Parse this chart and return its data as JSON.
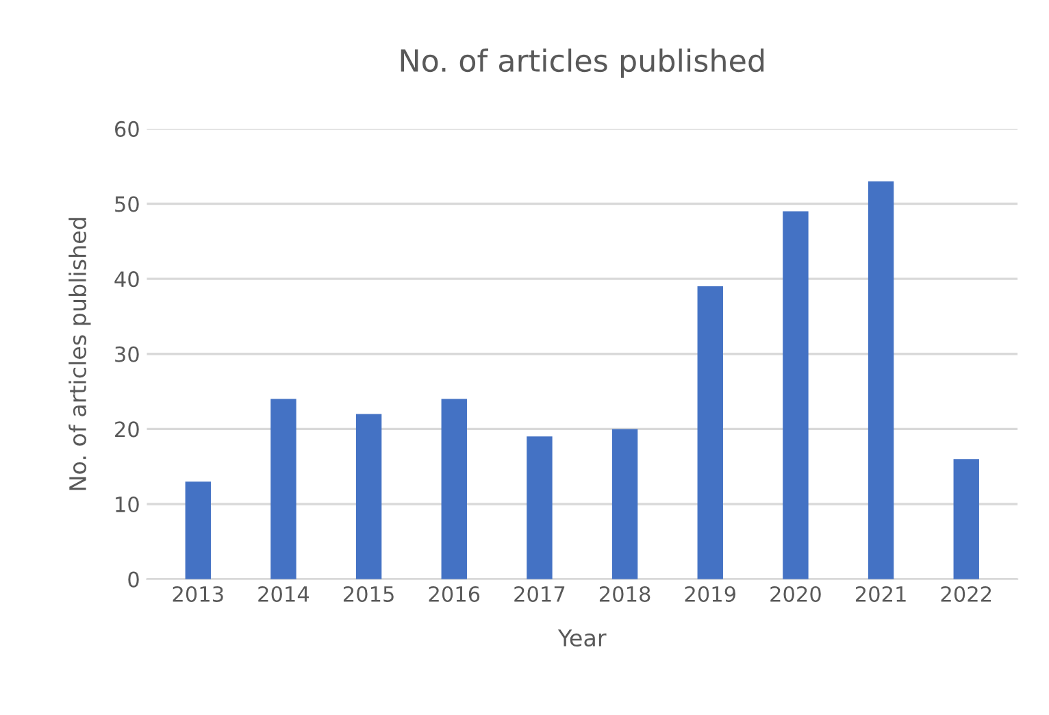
{
  "chart_data": {
    "type": "bar",
    "title": "No. of articles published",
    "xlabel": "Year",
    "ylabel": "No. of articles published",
    "categories": [
      "2013",
      "2014",
      "2015",
      "2016",
      "2017",
      "2018",
      "2019",
      "2020",
      "2021",
      "2022"
    ],
    "values": [
      13,
      24,
      22,
      24,
      19,
      20,
      39,
      49,
      53,
      16
    ],
    "color": "#4472c4",
    "ylim": [
      0,
      60
    ],
    "yticks": [
      0,
      10,
      20,
      30,
      40,
      50,
      60
    ],
    "grid": "y"
  }
}
